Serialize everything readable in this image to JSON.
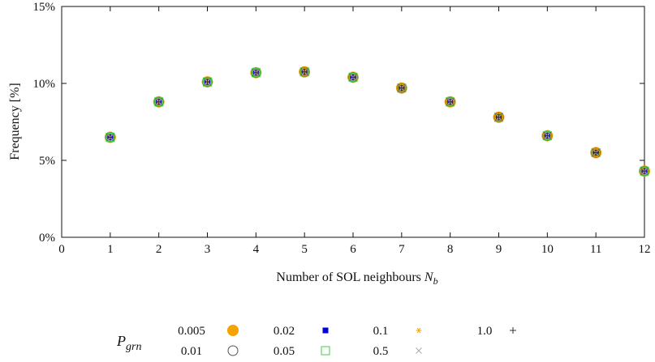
{
  "chart_data": {
    "type": "scatter",
    "xlabel": "Number of SOL neighbours",
    "xlabel_symbol": "N",
    "xlabel_subscript": "b",
    "ylabel": "Frequency [%]",
    "xlim": [
      0,
      12
    ],
    "ylim": [
      0,
      15
    ],
    "x_ticks": [
      "0",
      "1",
      "2",
      "3",
      "4",
      "5",
      "6",
      "7",
      "8",
      "9",
      "10",
      "11",
      "12"
    ],
    "y_ticks": [
      "0%",
      "5%",
      "10%",
      "15%"
    ],
    "grid": false,
    "legend_title": "P",
    "legend_title_subscript": "grn",
    "legend_placement": "bottom",
    "x": [
      1,
      2,
      3,
      4,
      5,
      6,
      7,
      8,
      9,
      10,
      11,
      12
    ],
    "series": [
      {
        "name": "0.005",
        "marker": "filled-circle",
        "color": "#f5a300",
        "values": [
          6.5,
          8.8,
          10.1,
          10.7,
          10.75,
          10.4,
          9.7,
          8.8,
          7.8,
          6.6,
          5.5,
          4.3
        ]
      },
      {
        "name": "0.01",
        "marker": "open-circle",
        "color": "#555555",
        "values": [
          6.5,
          8.8,
          10.1,
          10.7,
          10.75,
          10.4,
          9.7,
          8.8,
          7.8,
          6.6,
          5.5,
          4.3
        ]
      },
      {
        "name": "0.02",
        "marker": "filled-square",
        "color": "#0000dd",
        "values": [
          6.5,
          8.8,
          10.1,
          10.7,
          10.75,
          10.4,
          9.7,
          8.8,
          7.8,
          6.6,
          5.5,
          4.3
        ]
      },
      {
        "name": "0.05",
        "marker": "open-square",
        "color": "#44cc44",
        "values": [
          6.5,
          8.8,
          10.1,
          10.7,
          10.75,
          10.4,
          9.7,
          8.8,
          7.8,
          6.6,
          5.5,
          4.3
        ]
      },
      {
        "name": "0.1",
        "marker": "asterisk",
        "color": "#f5a300",
        "values": [
          6.5,
          8.8,
          10.1,
          10.7,
          10.75,
          10.4,
          9.7,
          8.8,
          7.8,
          6.6,
          5.5,
          4.3
        ]
      },
      {
        "name": "0.5",
        "marker": "cross",
        "color": "#aaaaaa",
        "values": [
          6.5,
          8.8,
          10.1,
          10.7,
          10.75,
          10.4,
          9.7,
          8.8,
          7.8,
          6.6,
          5.5,
          4.3
        ]
      },
      {
        "name": "1.0",
        "marker": "plus",
        "color": "#333333",
        "values": [
          6.5,
          8.8,
          10.1,
          10.7,
          10.75,
          10.4,
          9.7,
          8.8,
          7.8,
          6.6,
          5.5,
          4.3
        ]
      }
    ]
  }
}
